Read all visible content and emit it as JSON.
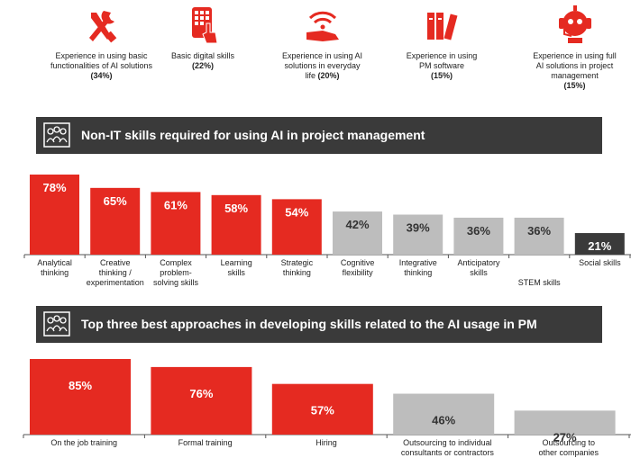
{
  "top_items": [
    {
      "lines": [
        "Experience in using basic",
        "functionalities of AI solutions"
      ],
      "pct": "(34%)",
      "icon": "tools-icon"
    },
    {
      "lines": [
        "Basic digital skills"
      ],
      "pct": "(22%)",
      "icon": "tablet-touch-icon"
    },
    {
      "lines": [
        "Experience in using AI",
        "solutions in everyday",
        "life"
      ],
      "pct": "(20%)",
      "icon": "wifi-hand-icon"
    },
    {
      "lines": [
        "Experience in using",
        "PM software"
      ],
      "pct": "(15%)",
      "icon": "binders-icon"
    },
    {
      "lines": [
        "Experience in using full",
        "AI solutions in project",
        "management"
      ],
      "pct": "(15%)",
      "icon": "robot-headset-icon"
    }
  ],
  "sections": {
    "non_it_title": "Non-IT skills required for using AI in project management",
    "approaches_title": "Top three best approaches in developing skills related to the AI usage in PM"
  },
  "colors": {
    "red": "#e52a21",
    "grey": "#bdbdbd",
    "dark": "#3a3a3a"
  },
  "chart_data": [
    {
      "type": "bar",
      "title": "Non-IT skills required for using AI in project management",
      "categories": [
        [
          "Analytical",
          "thinking"
        ],
        [
          "Creative",
          "thinking /",
          "experimentation"
        ],
        [
          "Complex",
          "problem-",
          "solving skills"
        ],
        [
          "Learning",
          "skills"
        ],
        [
          "Strategic",
          "thinking"
        ],
        [
          "Cognitive",
          "flexibility"
        ],
        [
          "Integrative",
          "thinking"
        ],
        [
          "Anticipatory",
          "skills"
        ],
        [
          "",
          "",
          "STEM skills"
        ],
        [
          "Social skills"
        ]
      ],
      "values": [
        78,
        65,
        61,
        58,
        54,
        42,
        39,
        36,
        36,
        21
      ],
      "labels": [
        "78%",
        "65%",
        "61%",
        "58%",
        "54%",
        "42%",
        "39%",
        "36%",
        "36%",
        "21%"
      ],
      "bar_colors": [
        "red",
        "red",
        "red",
        "red",
        "red",
        "grey",
        "grey",
        "grey",
        "grey",
        "dark"
      ],
      "ylim": [
        0,
        78
      ]
    },
    {
      "type": "bar",
      "title": "Top three best approaches in developing skills related to the AI usage in PM",
      "categories": [
        [
          "On the job training"
        ],
        [
          "Formal training"
        ],
        [
          "Hiring"
        ],
        [
          "Outsourcing to individual",
          "consultants or contractors"
        ],
        [
          "Outsourcing to",
          "other companies"
        ]
      ],
      "values": [
        85,
        76,
        57,
        46,
        27
      ],
      "labels": [
        "85%",
        "76%",
        "57%",
        "46%",
        "27%"
      ],
      "bar_colors": [
        "red",
        "red",
        "red",
        "grey",
        "grey"
      ],
      "ylim": [
        0,
        85
      ]
    }
  ]
}
